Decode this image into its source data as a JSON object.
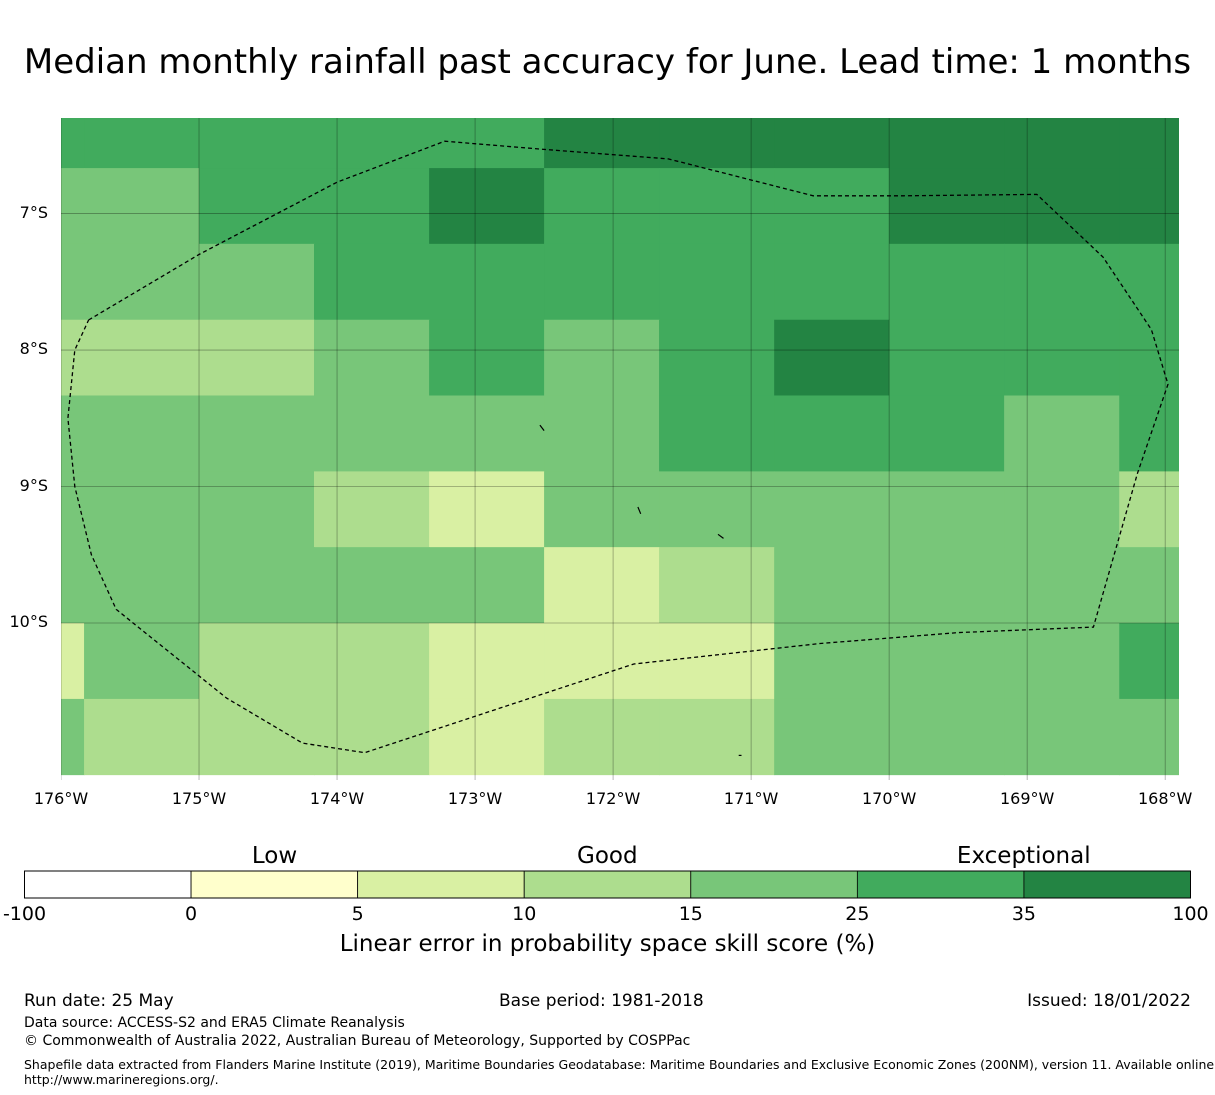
{
  "title": "Median monthly rainfall past accuracy for June. Lead time: 1 months",
  "map": {
    "lon_range": [
      -176,
      -167.9
    ],
    "lat_range": [
      -11.15,
      -6.3
    ],
    "lat_ticks": [
      {
        "value": -7,
        "label": "7°S"
      },
      {
        "value": -8,
        "label": "8°S"
      },
      {
        "value": -9,
        "label": "9°S"
      },
      {
        "value": -10,
        "label": "10°S"
      }
    ],
    "lon_ticks": [
      {
        "value": -176,
        "label": "176°W"
      },
      {
        "value": -175,
        "label": "175°W"
      },
      {
        "value": -174,
        "label": "174°W"
      },
      {
        "value": -173,
        "label": "173°W"
      },
      {
        "value": -172,
        "label": "172°W"
      },
      {
        "value": -171,
        "label": "171°W"
      },
      {
        "value": -170,
        "label": "170°W"
      },
      {
        "value": -169,
        "label": "169°W"
      },
      {
        "value": -168,
        "label": "168°W"
      }
    ],
    "grid_lon_edges": [
      -176,
      -175.833,
      -175,
      -174.167,
      -173.333,
      -172.5,
      -171.667,
      -170.833,
      -170,
      -169.167,
      -168.333,
      -167.9
    ],
    "grid_lat_edges": [
      -6.3,
      -6.667,
      -7.222,
      -7.778,
      -8.333,
      -8.889,
      -9.444,
      -10.0,
      -10.556,
      -11.11
    ],
    "skill_class_grid": [
      [
        5,
        5,
        5,
        5,
        5,
        6,
        6,
        6,
        6,
        6,
        6
      ],
      [
        4,
        4,
        5,
        5,
        6,
        5,
        5,
        5,
        6,
        6,
        6
      ],
      [
        4,
        4,
        4,
        5,
        5,
        5,
        5,
        5,
        5,
        5,
        5
      ],
      [
        3,
        3,
        3,
        4,
        5,
        4,
        5,
        6,
        5,
        5,
        5
      ],
      [
        4,
        4,
        4,
        4,
        4,
        4,
        5,
        5,
        5,
        4,
        5
      ],
      [
        4,
        4,
        4,
        3,
        2,
        4,
        4,
        4,
        4,
        4,
        3
      ],
      [
        4,
        4,
        4,
        4,
        4,
        2,
        3,
        4,
        4,
        4,
        4
      ],
      [
        2,
        4,
        3,
        3,
        2,
        2,
        2,
        4,
        4,
        4,
        5
      ],
      [
        4,
        3,
        3,
        3,
        2,
        3,
        3,
        4,
        4,
        4,
        4
      ]
    ],
    "eez_boundary": [
      [
        -175.8,
        -7.78
      ],
      [
        -175.0,
        -7.3
      ],
      [
        -174.0,
        -6.77
      ],
      [
        -173.22,
        -6.47
      ],
      [
        -172.5,
        -6.53
      ],
      [
        -171.6,
        -6.6
      ],
      [
        -170.55,
        -6.87
      ],
      [
        -169.9,
        -6.87
      ],
      [
        -168.93,
        -6.86
      ],
      [
        -168.45,
        -7.32
      ],
      [
        -168.1,
        -7.85
      ],
      [
        -167.98,
        -8.25
      ],
      [
        -168.2,
        -8.9
      ],
      [
        -168.52,
        -10.03
      ],
      [
        -169.5,
        -10.07
      ],
      [
        -170.5,
        -10.15
      ],
      [
        -171.85,
        -10.3
      ],
      [
        -172.6,
        -10.55
      ],
      [
        -173.8,
        -10.95
      ],
      [
        -174.25,
        -10.88
      ],
      [
        -174.8,
        -10.55
      ],
      [
        -175.6,
        -9.9
      ],
      [
        -175.78,
        -9.5
      ],
      [
        -175.9,
        -9.0
      ],
      [
        -175.95,
        -8.5
      ],
      [
        -175.9,
        -8.0
      ],
      [
        -175.8,
        -7.78
      ]
    ],
    "islands": [
      [
        [
          -172.53,
          -8.55
        ],
        [
          -172.5,
          -8.59
        ]
      ],
      [
        [
          -171.82,
          -9.15
        ],
        [
          -171.8,
          -9.2
        ]
      ],
      [
        [
          -171.24,
          -9.35
        ],
        [
          -171.2,
          -9.38
        ]
      ],
      [
        [
          -171.09,
          -10.97
        ],
        [
          -171.07,
          -10.97
        ]
      ]
    ]
  },
  "colorbar": {
    "categories": [
      {
        "label": "Low"
      },
      {
        "label": "Good"
      },
      {
        "label": "Exceptional"
      }
    ],
    "bins": [
      {
        "from": "-100",
        "to": "0",
        "color": "#ffffff"
      },
      {
        "from": "0",
        "to": "5",
        "color": "#ffffcc"
      },
      {
        "from": "5",
        "to": "10",
        "color": "#d9f0a3"
      },
      {
        "from": "10",
        "to": "15",
        "color": "#addd8e"
      },
      {
        "from": "15",
        "to": "25",
        "color": "#78c679"
      },
      {
        "from": "25",
        "to": "35",
        "color": "#41ab5d"
      },
      {
        "from": "35",
        "to": "100",
        "color": "#238443"
      }
    ],
    "tick_labels": [
      "-100",
      "0",
      "5",
      "10",
      "15",
      "25",
      "35",
      "100"
    ],
    "axis_label": "Linear error in probability space skill score (%)"
  },
  "footer": {
    "run_date": "Run date: 25 May",
    "base_period": "Base period: 1981-2018",
    "issued": "Issued: 18/01/2022",
    "data_source": "Data source: ACCESS-S2 and ERA5 Climate Reanalysis",
    "copyright": "© Commonwealth of Australia 2022, Australian Bureau of Meteorology, Supported by COSPPac",
    "shapefile_line1": "Shapefile data extracted from Flanders Marine Institute (2019), Maritime Boundaries Geodatabase: Maritime Boundaries and Exclusive Economic Zones (200NM), version 11. Available online at",
    "shapefile_line2": "http://www.marineregions.org/."
  }
}
